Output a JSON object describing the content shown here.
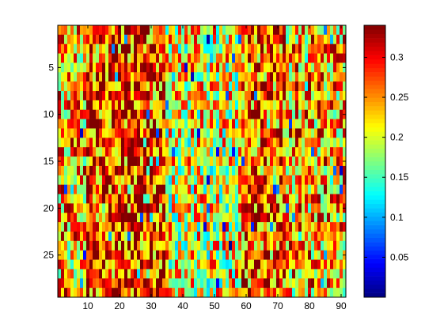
{
  "chart_data": {
    "type": "heatmap",
    "title": "",
    "xlabel": "",
    "ylabel": "",
    "n_cols": 91,
    "n_rows": 29,
    "x_ticks": [
      10,
      20,
      30,
      40,
      50,
      60,
      70,
      80,
      90
    ],
    "y_ticks": [
      5,
      10,
      15,
      20,
      25
    ],
    "colormap": "jet",
    "clim": [
      0,
      0.34
    ],
    "colorbar_ticks": [
      0.05,
      0.1,
      0.15,
      0.2,
      0.25,
      0.3
    ],
    "value_profile": {
      "column_bands": [
        {
          "from": 1,
          "to": 9,
          "level": 0.24
        },
        {
          "from": 10,
          "to": 34,
          "level": 0.28
        },
        {
          "from": 35,
          "to": 58,
          "level": 0.21
        },
        {
          "from": 59,
          "to": 72,
          "level": 0.27
        },
        {
          "from": 73,
          "to": 91,
          "level": 0.24
        }
      ],
      "noise": 0.1
    }
  }
}
